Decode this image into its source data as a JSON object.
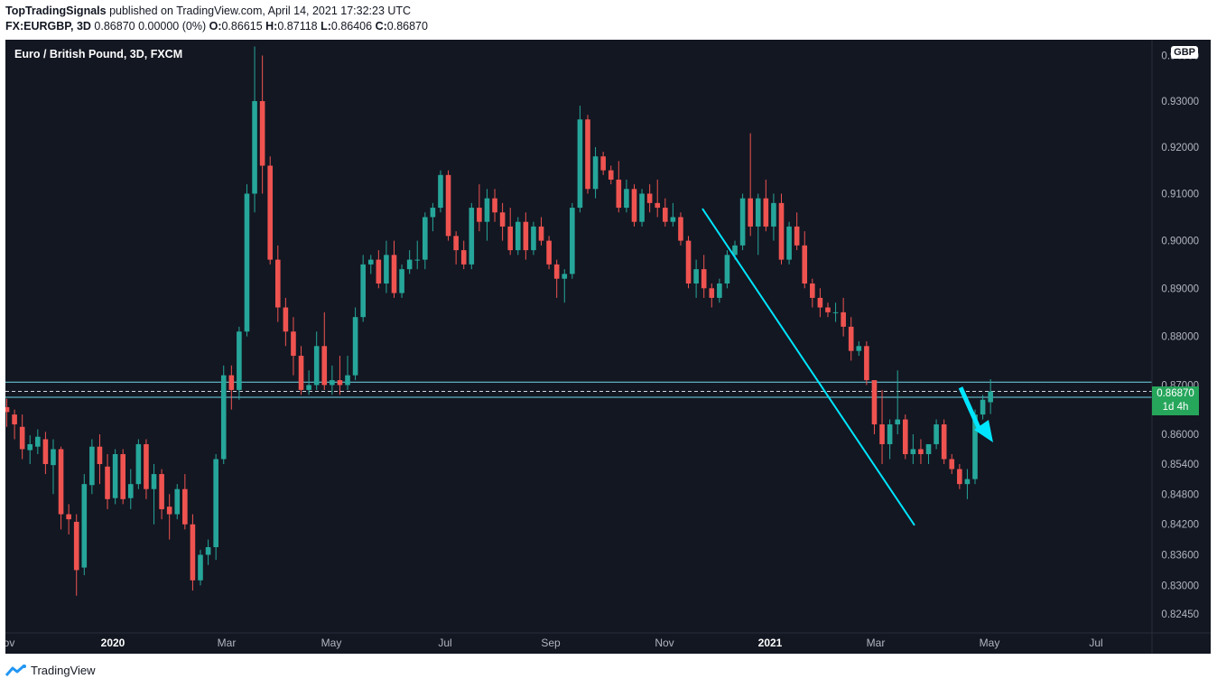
{
  "header": {
    "publisher": "TopTradingSignals",
    "published_text": " published on TradingView.com, April 14, 2021 17:32:23 UTC",
    "symbol_line": "FX:EURGBP, 3D",
    "change": " 0.86870 0.00000 (0%) ",
    "o_label": "O:",
    "o_value": "0.86615 ",
    "h_label": "H:",
    "h_value": "0.87118 ",
    "l_label": "L:",
    "l_value": "0.86406 ",
    "c_label": "C:",
    "c_value": "0.86870"
  },
  "chart_header": {
    "title": "Euro / British Pound, 3D, FXCM",
    "currency": "GBP"
  },
  "price_tag": {
    "price": "0.86870",
    "countdown": "1d 4h"
  },
  "footer": {
    "brand": "TradingView"
  },
  "colors": {
    "up": "#26a69a",
    "down": "#ef5350",
    "background": "#131722",
    "trendline": "#00e5ff",
    "level": "#6fd7e8"
  },
  "chart_data": {
    "type": "candlestick",
    "title": "Euro / British Pound, 3D, FXCM",
    "x_tick_labels": [
      "ov",
      "2020",
      "Mar",
      "May",
      "Jul",
      "Sep",
      "Nov",
      "2021",
      "Mar",
      "May",
      "Jul"
    ],
    "y_tick_labels": [
      "0.94000",
      "0.93000",
      "0.92000",
      "0.91000",
      "0.90000",
      "0.89000",
      "0.88000",
      "0.87000",
      "0.86000",
      "0.85400",
      "0.84800",
      "0.84200",
      "0.83600",
      "0.83000",
      "0.82450"
    ],
    "y_scale": "log",
    "ylim": [
      0.8208,
      0.9435
    ],
    "grid": false,
    "last_price": 0.8687,
    "levels": [
      0.8706,
      0.8675
    ],
    "trendline": [
      [
        0.9068,
        0.8418
      ]
    ],
    "candles": [
      [
        0.8655,
        0.8672,
        0.8615,
        0.8645
      ],
      [
        0.864,
        0.865,
        0.859,
        0.862
      ],
      [
        0.8615,
        0.864,
        0.855,
        0.857
      ],
      [
        0.8568,
        0.8598,
        0.854,
        0.858
      ],
      [
        0.8575,
        0.861,
        0.856,
        0.8595
      ],
      [
        0.859,
        0.8605,
        0.852,
        0.854
      ],
      [
        0.8538,
        0.859,
        0.848,
        0.857
      ],
      [
        0.857,
        0.8575,
        0.841,
        0.844
      ],
      [
        0.844,
        0.846,
        0.84,
        0.843
      ],
      [
        0.8425,
        0.844,
        0.828,
        0.833
      ],
      [
        0.8335,
        0.852,
        0.832,
        0.85
      ],
      [
        0.8498,
        0.859,
        0.848,
        0.8575
      ],
      [
        0.8575,
        0.86,
        0.85,
        0.854
      ],
      [
        0.8535,
        0.856,
        0.845,
        0.847
      ],
      [
        0.8472,
        0.857,
        0.846,
        0.856
      ],
      [
        0.856,
        0.857,
        0.846,
        0.847
      ],
      [
        0.8472,
        0.853,
        0.845,
        0.85
      ],
      [
        0.85,
        0.859,
        0.849,
        0.858
      ],
      [
        0.858,
        0.859,
        0.847,
        0.849
      ],
      [
        0.849,
        0.854,
        0.842,
        0.852
      ],
      [
        0.852,
        0.853,
        0.843,
        0.845
      ],
      [
        0.8455,
        0.848,
        0.839,
        0.844
      ],
      [
        0.844,
        0.85,
        0.843,
        0.849
      ],
      [
        0.849,
        0.852,
        0.841,
        0.842
      ],
      [
        0.842,
        0.844,
        0.829,
        0.831
      ],
      [
        0.831,
        0.837,
        0.83,
        0.836
      ],
      [
        0.836,
        0.839,
        0.834,
        0.8375
      ],
      [
        0.8375,
        0.856,
        0.835,
        0.855
      ],
      [
        0.855,
        0.874,
        0.854,
        0.872
      ],
      [
        0.872,
        0.874,
        0.865,
        0.869
      ],
      [
        0.869,
        0.882,
        0.867,
        0.881
      ],
      [
        0.881,
        0.912,
        0.88,
        0.91
      ],
      [
        0.91,
        0.942,
        0.906,
        0.93
      ],
      [
        0.93,
        0.94,
        0.91,
        0.916
      ],
      [
        0.916,
        0.918,
        0.895,
        0.896
      ],
      [
        0.896,
        0.899,
        0.883,
        0.886
      ],
      [
        0.886,
        0.888,
        0.878,
        0.881
      ],
      [
        0.881,
        0.884,
        0.872,
        0.876
      ],
      [
        0.876,
        0.878,
        0.868,
        0.869
      ],
      [
        0.869,
        0.873,
        0.868,
        0.87
      ],
      [
        0.87,
        0.881,
        0.869,
        0.878
      ],
      [
        0.878,
        0.885,
        0.869,
        0.87
      ],
      [
        0.87,
        0.874,
        0.868,
        0.871
      ],
      [
        0.871,
        0.876,
        0.868,
        0.87
      ],
      [
        0.87,
        0.876,
        0.869,
        0.872
      ],
      [
        0.872,
        0.886,
        0.871,
        0.884
      ],
      [
        0.884,
        0.897,
        0.883,
        0.895
      ],
      [
        0.895,
        0.897,
        0.893,
        0.896
      ],
      [
        0.896,
        0.898,
        0.89,
        0.891
      ],
      [
        0.891,
        0.9,
        0.889,
        0.897
      ],
      [
        0.897,
        0.9,
        0.888,
        0.889
      ],
      [
        0.889,
        0.895,
        0.888,
        0.894
      ],
      [
        0.894,
        0.898,
        0.893,
        0.896
      ],
      [
        0.896,
        0.9,
        0.894,
        0.896
      ],
      [
        0.896,
        0.906,
        0.894,
        0.905
      ],
      [
        0.905,
        0.908,
        0.902,
        0.907
      ],
      [
        0.907,
        0.915,
        0.906,
        0.914
      ],
      [
        0.914,
        0.915,
        0.9,
        0.901
      ],
      [
        0.901,
        0.902,
        0.895,
        0.898
      ],
      [
        0.898,
        0.9,
        0.894,
        0.895
      ],
      [
        0.895,
        0.908,
        0.894,
        0.907
      ],
      [
        0.907,
        0.912,
        0.902,
        0.904
      ],
      [
        0.904,
        0.911,
        0.9,
        0.909
      ],
      [
        0.909,
        0.911,
        0.904,
        0.906
      ],
      [
        0.906,
        0.908,
        0.9,
        0.903
      ],
      [
        0.903,
        0.907,
        0.897,
        0.898
      ],
      [
        0.898,
        0.905,
        0.897,
        0.904
      ],
      [
        0.904,
        0.906,
        0.896,
        0.898
      ],
      [
        0.898,
        0.904,
        0.897,
        0.903
      ],
      [
        0.903,
        0.905,
        0.899,
        0.9
      ],
      [
        0.9,
        0.901,
        0.894,
        0.895
      ],
      [
        0.895,
        0.896,
        0.888,
        0.892
      ],
      [
        0.892,
        0.894,
        0.887,
        0.893
      ],
      [
        0.893,
        0.908,
        0.892,
        0.907
      ],
      [
        0.907,
        0.929,
        0.906,
        0.926
      ],
      [
        0.926,
        0.927,
        0.91,
        0.911
      ],
      [
        0.911,
        0.92,
        0.909,
        0.918
      ],
      [
        0.918,
        0.919,
        0.914,
        0.915
      ],
      [
        0.915,
        0.916,
        0.912,
        0.913
      ],
      [
        0.913,
        0.917,
        0.906,
        0.907
      ],
      [
        0.907,
        0.913,
        0.906,
        0.911
      ],
      [
        0.911,
        0.912,
        0.903,
        0.904
      ],
      [
        0.904,
        0.911,
        0.903,
        0.91
      ],
      [
        0.91,
        0.912,
        0.906,
        0.908
      ],
      [
        0.908,
        0.913,
        0.905,
        0.907
      ],
      [
        0.907,
        0.909,
        0.903,
        0.904
      ],
      [
        0.904,
        0.908,
        0.903,
        0.905
      ],
      [
        0.905,
        0.906,
        0.899,
        0.9
      ],
      [
        0.9,
        0.901,
        0.89,
        0.891
      ],
      [
        0.891,
        0.896,
        0.888,
        0.894
      ],
      [
        0.894,
        0.897,
        0.888,
        0.89
      ],
      [
        0.89,
        0.891,
        0.886,
        0.888
      ],
      [
        0.888,
        0.892,
        0.887,
        0.891
      ],
      [
        0.891,
        0.898,
        0.89,
        0.897
      ],
      [
        0.897,
        0.9,
        0.896,
        0.899
      ],
      [
        0.899,
        0.91,
        0.898,
        0.909
      ],
      [
        0.909,
        0.923,
        0.901,
        0.903
      ],
      [
        0.903,
        0.91,
        0.897,
        0.909
      ],
      [
        0.909,
        0.913,
        0.902,
        0.903
      ],
      [
        0.903,
        0.91,
        0.9,
        0.908
      ],
      [
        0.908,
        0.91,
        0.895,
        0.896
      ],
      [
        0.896,
        0.904,
        0.895,
        0.903
      ],
      [
        0.903,
        0.906,
        0.898,
        0.899
      ],
      [
        0.899,
        0.902,
        0.89,
        0.891
      ],
      [
        0.891,
        0.892,
        0.886,
        0.888
      ],
      [
        0.888,
        0.89,
        0.884,
        0.886
      ],
      [
        0.886,
        0.887,
        0.884,
        0.885
      ],
      [
        0.885,
        0.887,
        0.883,
        0.885
      ],
      [
        0.885,
        0.888,
        0.88,
        0.882
      ],
      [
        0.882,
        0.884,
        0.875,
        0.877
      ],
      [
        0.877,
        0.879,
        0.876,
        0.878
      ],
      [
        0.878,
        0.879,
        0.87,
        0.871
      ],
      [
        0.871,
        0.871,
        0.86,
        0.862
      ],
      [
        0.862,
        0.869,
        0.854,
        0.858
      ],
      [
        0.858,
        0.863,
        0.855,
        0.862
      ],
      [
        0.862,
        0.873,
        0.86,
        0.863
      ],
      [
        0.863,
        0.864,
        0.855,
        0.856
      ],
      [
        0.856,
        0.86,
        0.854,
        0.857
      ],
      [
        0.857,
        0.859,
        0.854,
        0.856
      ],
      [
        0.856,
        0.858,
        0.854,
        0.858
      ],
      [
        0.858,
        0.863,
        0.857,
        0.862
      ],
      [
        0.862,
        0.863,
        0.854,
        0.855
      ],
      [
        0.855,
        0.856,
        0.852,
        0.853
      ],
      [
        0.853,
        0.854,
        0.849,
        0.85
      ],
      [
        0.85,
        0.853,
        0.847,
        0.851
      ],
      [
        0.851,
        0.865,
        0.85,
        0.864
      ],
      [
        0.864,
        0.868,
        0.863,
        0.867
      ],
      [
        0.8665,
        0.8712,
        0.8641,
        0.8687
      ]
    ]
  }
}
